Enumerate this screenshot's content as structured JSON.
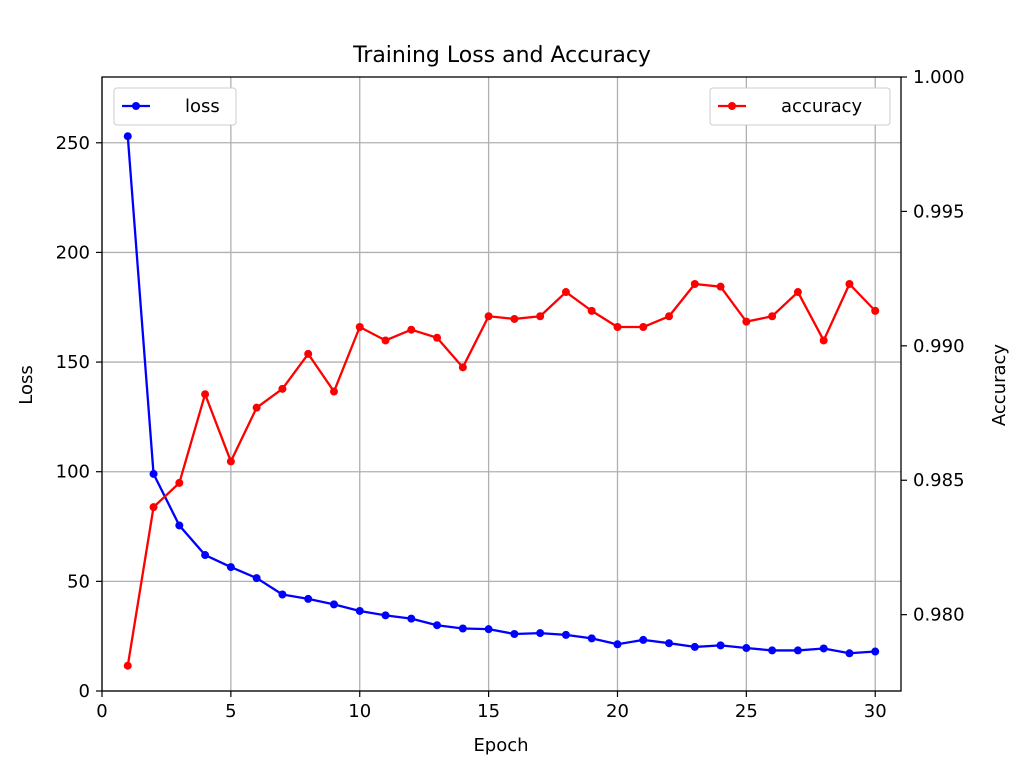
{
  "chart_data": {
    "type": "line",
    "title": "Training Loss and Accuracy",
    "xlabel": "Epoch",
    "ylabel": "Loss",
    "ylabel_right": "Accuracy",
    "xlim": [
      0,
      31
    ],
    "ylim": [
      0,
      280
    ],
    "ylim_right": [
      0.97716,
      1.0
    ],
    "xticks": [
      0,
      5,
      10,
      15,
      20,
      25,
      30
    ],
    "yticks": [
      0,
      50,
      100,
      150,
      200,
      250
    ],
    "yticks_right": [
      0.98,
      0.985,
      0.99,
      0.995,
      1.0
    ],
    "xtick_labels": [
      "0",
      "5",
      "10",
      "15",
      "20",
      "25",
      "30"
    ],
    "ytick_labels": [
      "0",
      "50",
      "100",
      "150",
      "200",
      "250"
    ],
    "ytick_labels_right": [
      "0.980",
      "0.985",
      "0.990",
      "0.995",
      "1.000"
    ],
    "grid": true,
    "x": [
      1,
      2,
      3,
      4,
      5,
      6,
      7,
      8,
      9,
      10,
      11,
      12,
      13,
      14,
      15,
      16,
      17,
      18,
      19,
      20,
      21,
      22,
      23,
      24,
      25,
      26,
      27,
      28,
      29,
      30
    ],
    "series": [
      {
        "name": "loss",
        "axis": "left",
        "color": "#0000ff",
        "legend_position": "upper left",
        "values": [
          253,
          99,
          75.5,
          62,
          56.5,
          51.5,
          44,
          42,
          39.5,
          36.5,
          34.5,
          33,
          30,
          28.5,
          28.2,
          26,
          26.4,
          25.6,
          24,
          21.3,
          23.3,
          21.8,
          20.1,
          20.8,
          19.6,
          18.5,
          18.5,
          19.4,
          17.2,
          18
        ]
      },
      {
        "name": "accuracy",
        "axis": "right",
        "color": "#ff0000",
        "legend_position": "upper right",
        "values": [
          0.9781,
          0.984,
          0.9849,
          0.9882,
          0.9857,
          0.9877,
          0.9884,
          0.9897,
          0.9883,
          0.9907,
          0.9902,
          0.9906,
          0.9903,
          0.9892,
          0.9911,
          0.991,
          0.9911,
          0.992,
          0.9913,
          0.9907,
          0.9907,
          0.9911,
          0.9923,
          0.9922,
          0.9909,
          0.9911,
          0.992,
          0.9902,
          0.9923,
          0.9913
        ]
      }
    ]
  }
}
